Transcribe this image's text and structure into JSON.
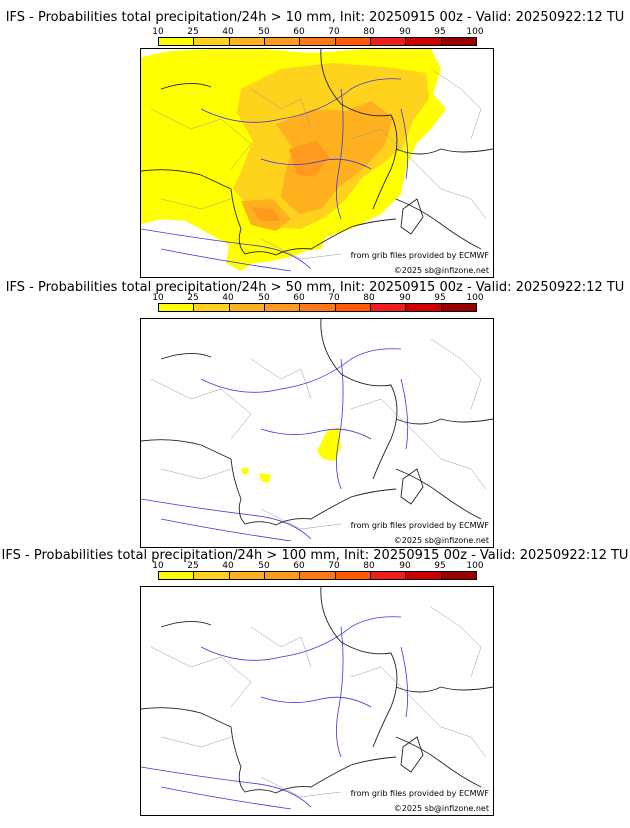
{
  "panels": [
    {
      "title": "IFS - Probabilities total precipitation/24h > 10 mm, Init: 20250915 00z - Valid: 20250922:12 TU",
      "credit_grib": "from grib files provided by ECMWF",
      "credit_site": "©2025 sb@infizone.net"
    },
    {
      "title": "IFS - Probabilities total precipitation/24h > 50 mm, Init: 20250915 00z - Valid: 20250922:12 TU",
      "credit_grib": "from grib files provided by ECMWF",
      "credit_site": "©2025 sb@infizone.net"
    },
    {
      "title": "IFS - Probabilities total precipitation/24h > 100 mm, Init: 20250915 00z - Valid: 20250922:12 TU",
      "credit_grib": "from grib files provided by ECMWF",
      "credit_site": "©2025 sb@infizone.net"
    }
  ],
  "legend": {
    "labels": [
      "10",
      "25",
      "40",
      "50",
      "60",
      "70",
      "80",
      "90",
      "95",
      "100"
    ],
    "colors": [
      "#ffff00",
      "#ffd21e",
      "#ffb01e",
      "#ff9a1e",
      "#ff7814",
      "#ff5a00",
      "#ee1e1e",
      "#cc0000",
      "#990000",
      "#5a0000"
    ]
  },
  "colors": {
    "rivers": "#3a3ad8",
    "borders": "#222222",
    "regions": "#9a9a9a"
  }
}
